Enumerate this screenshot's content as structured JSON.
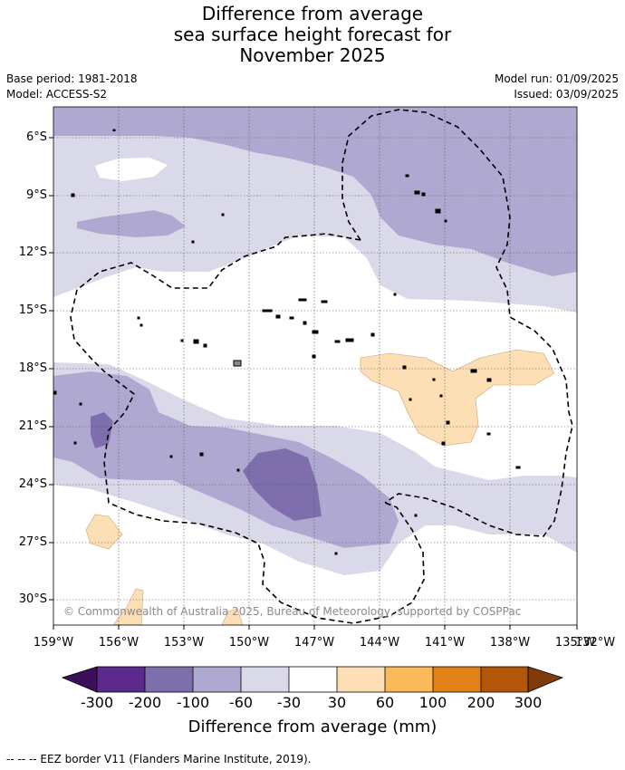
{
  "title": [
    "Difference from average",
    "sea surface height forecast for",
    "November 2025"
  ],
  "meta": {
    "base_period": "Base period: 1981-2018",
    "model": "Model: ACCESS-S2",
    "model_run": "Model run: 01/09/2025",
    "issued": "Issued: 03/09/2025"
  },
  "map": {
    "lat_ticks": [
      "6°S",
      "9°S",
      "12°S",
      "15°S",
      "18°S",
      "21°S",
      "24°S",
      "27°S",
      "30°S"
    ],
    "lon_ticks": [
      "159°W",
      "156°W",
      "153°W",
      "150°W",
      "147°W",
      "144°W",
      "141°W",
      "138°W",
      "135°W",
      "132°W"
    ],
    "copyright": "© Commonwealth of Australia 2025, Bureau of Meteorology, supported by COSPPac"
  },
  "colorbar": {
    "labels": [
      "-300",
      "-200",
      "-100",
      "-60",
      "-30",
      "30",
      "60",
      "100",
      "200",
      "300"
    ],
    "colors": [
      "#3b0f5a",
      "#5b2a8c",
      "#7e6fac",
      "#afa9d1",
      "#d9d9ea",
      "#ffffff",
      "#fddfb5",
      "#fbb95c",
      "#e28117",
      "#b25709",
      "#7f3b08"
    ],
    "title": "Difference from average (mm)"
  },
  "footnote": "--  --  -- EEZ border V11 (Flanders Marine Institute, 2019)."
}
